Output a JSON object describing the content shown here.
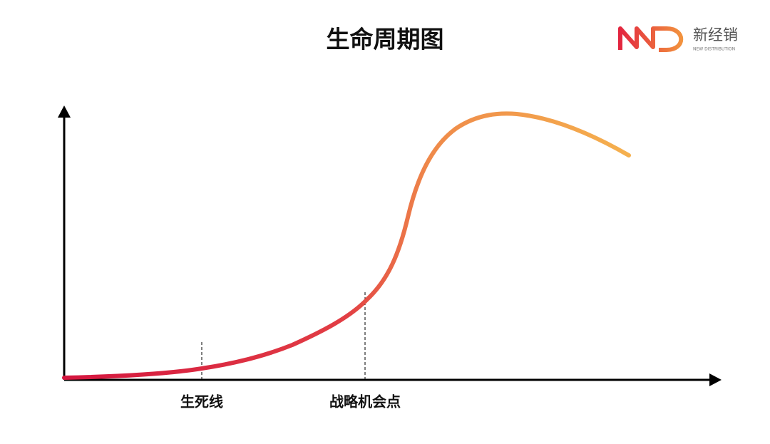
{
  "header": {
    "title": "生命周期图",
    "logo": {
      "name": "新经销",
      "tagline": "NEW DISTRIBUTION"
    }
  },
  "labels": {
    "death_line": "生死线",
    "opportunity_point": "战略机会点"
  }
}
